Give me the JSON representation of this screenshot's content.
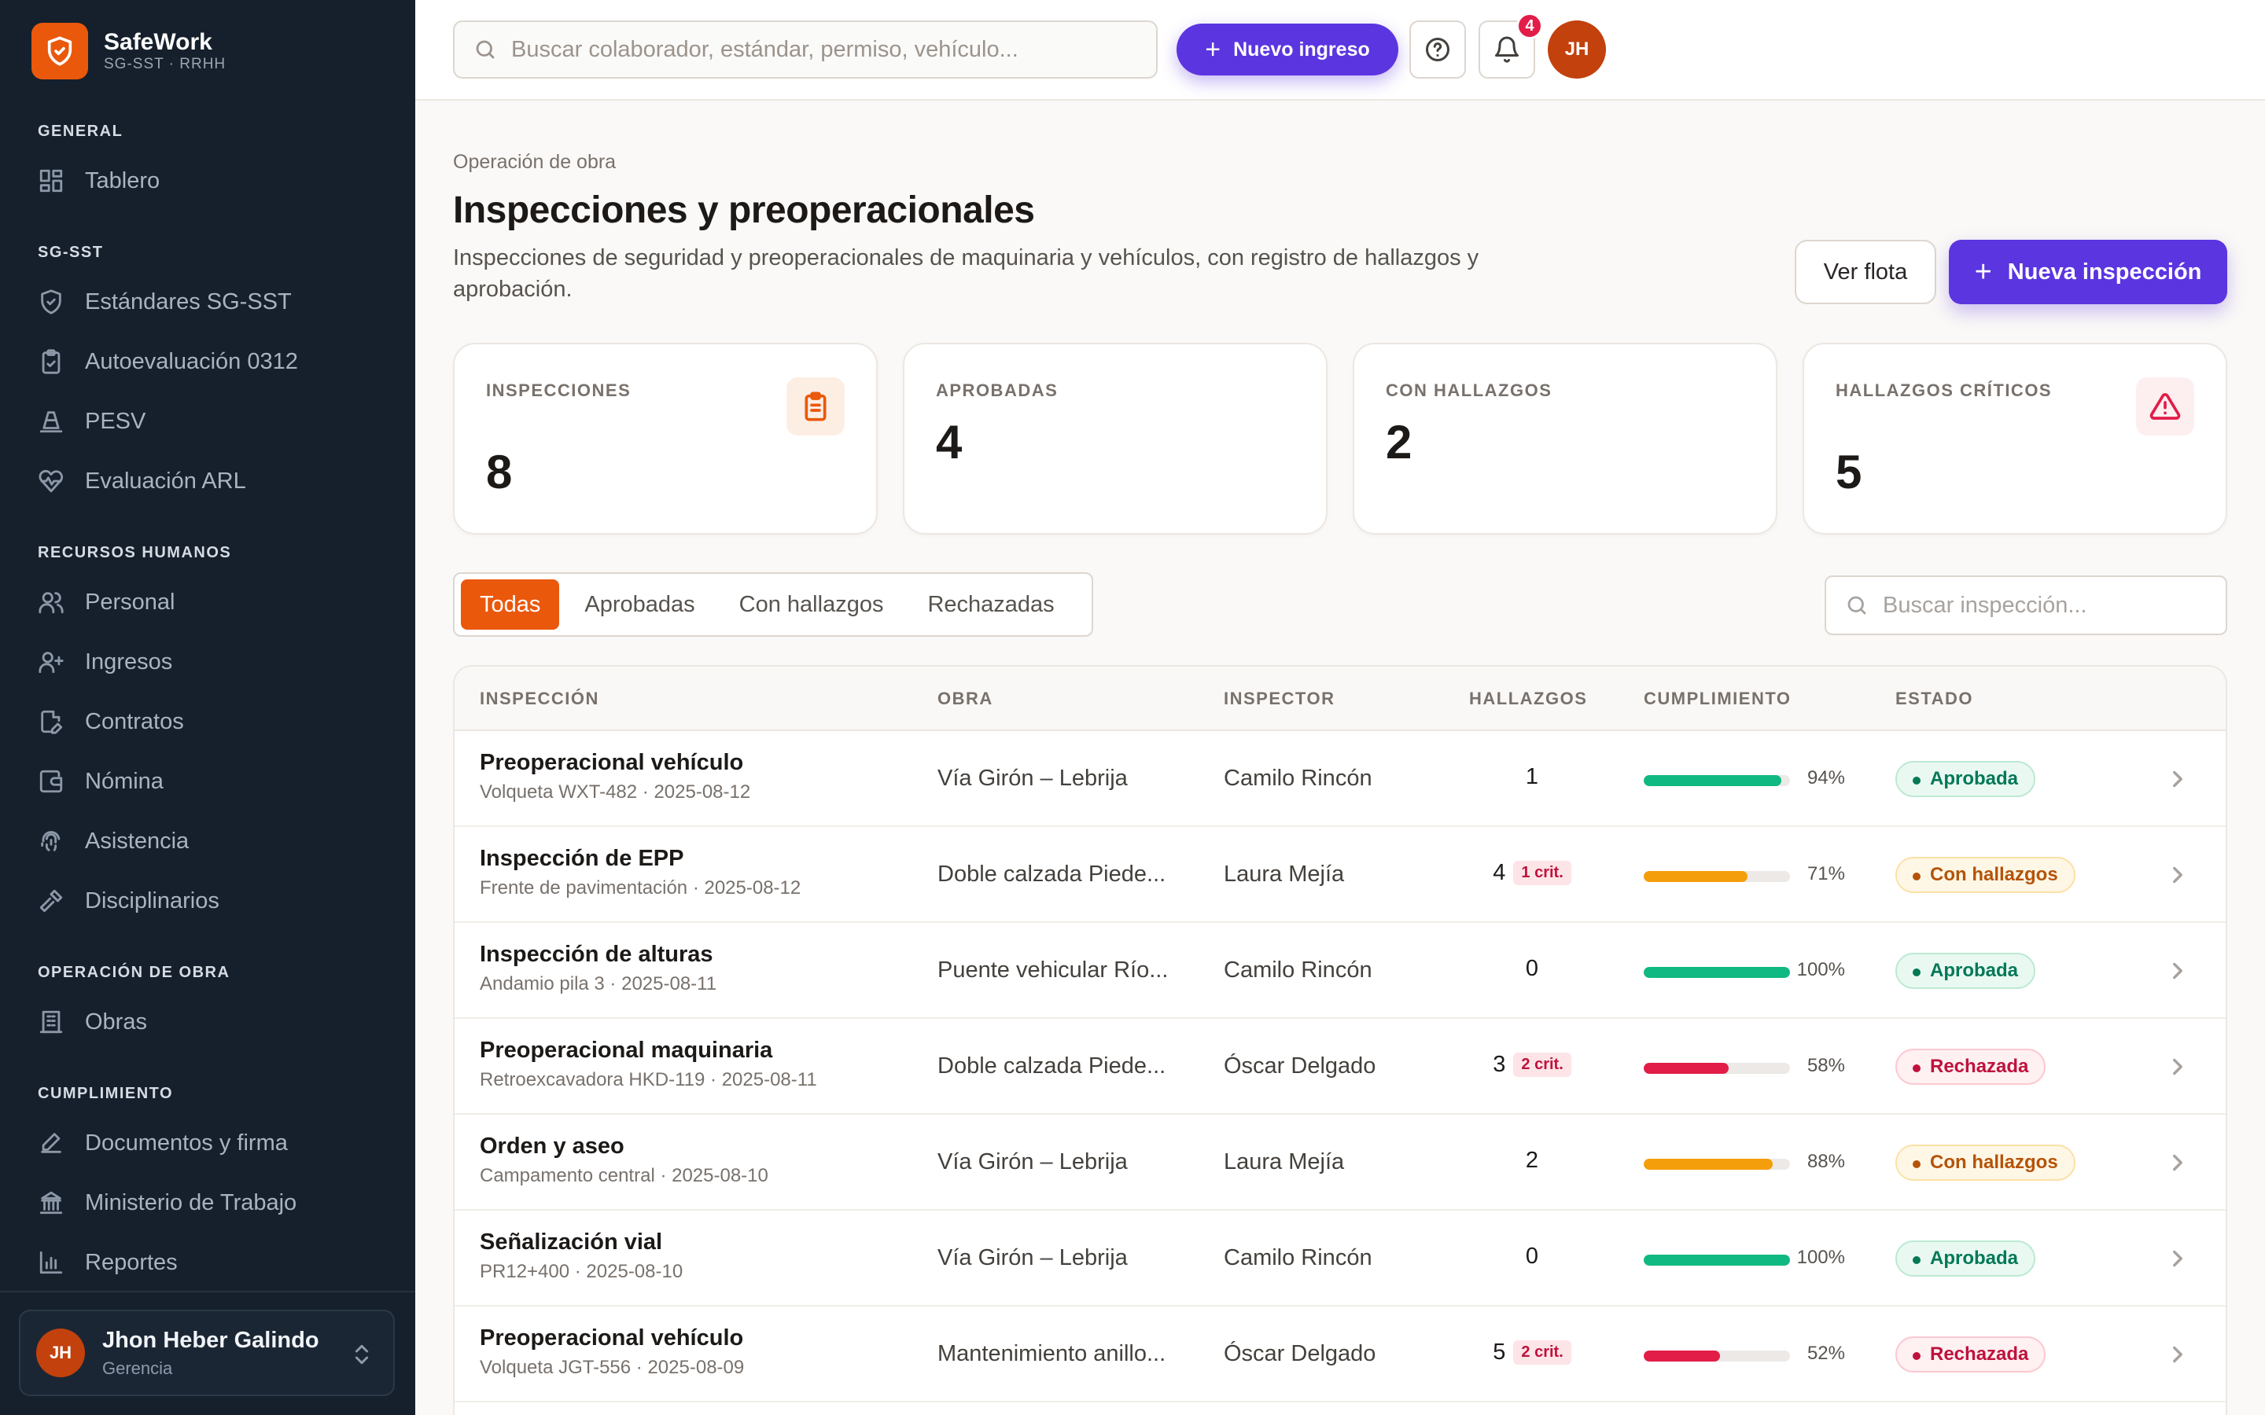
{
  "brand": {
    "name": "SafeWork",
    "sub": "SG-SST · RRHH"
  },
  "sidebar": {
    "sections": {
      "general": "GENERAL",
      "sgsst": "SG-SST",
      "rrhh": "RECURSOS HUMANOS",
      "obra": "OPERACIÓN DE OBRA",
      "cumplimiento": "CUMPLIMIENTO"
    },
    "items": {
      "tablero": "Tablero",
      "estandares": "Estándares SG-SST",
      "autoevaluacion": "Autoevaluación 0312",
      "pesv": "PESV",
      "arl": "Evaluación ARL",
      "personal": "Personal",
      "ingresos": "Ingresos",
      "contratos": "Contratos",
      "nomina": "Nómina",
      "asistencia": "Asistencia",
      "disciplinarios": "Disciplinarios",
      "obras": "Obras",
      "documentos": "Documentos y firma",
      "ministerio": "Ministerio de Trabajo",
      "reportes": "Reportes"
    },
    "user": {
      "initials": "JH",
      "name": "Jhon Heber Galindo",
      "role": "Gerencia"
    }
  },
  "topbar": {
    "search_placeholder": "Buscar colaborador, estándar, permiso, vehículo...",
    "new_button": "Nuevo ingreso",
    "notification_count": "4",
    "avatar_initials": "JH"
  },
  "page": {
    "breadcrumb": "Operación de obra",
    "title": "Inspecciones y preoperacionales",
    "subtitle": "Inspecciones de seguridad y preoperacionales de maquinaria y vehículos, con registro de hallazgos y aprobación.",
    "btn_fleet": "Ver flota",
    "btn_new": "Nueva inspección"
  },
  "kpis": [
    {
      "label": "INSPECCIONES",
      "value": "8"
    },
    {
      "label": "APROBADAS",
      "value": "4"
    },
    {
      "label": "CON HALLAZGOS",
      "value": "2"
    },
    {
      "label": "HALLAZGOS CRÍTICOS",
      "value": "5"
    }
  ],
  "tabs": [
    "Todas",
    "Aprobadas",
    "Con hallazgos",
    "Rechazadas"
  ],
  "table_search_placeholder": "Buscar inspección...",
  "table": {
    "headers": [
      "INSPECCIÓN",
      "OBRA",
      "INSPECTOR",
      "HALLAZGOS",
      "CUMPLIMIENTO",
      "ESTADO"
    ],
    "rows": [
      {
        "title": "Preoperacional vehículo",
        "sub": "Volqueta WXT-482 · 2025-08-12",
        "obra": "Vía Girón – Lebrija",
        "inspector": "Camilo Rincón",
        "hallazgos": "1",
        "critical": "",
        "compliance": 94,
        "compliance_label": "94%",
        "status": "Aprobada",
        "status_kind": "ok"
      },
      {
        "title": "Inspección de EPP",
        "sub": "Frente de pavimentación · 2025-08-12",
        "obra": "Doble calzada Piede...",
        "inspector": "Laura Mejía",
        "hallazgos": "4",
        "critical": "1 crit.",
        "compliance": 71,
        "compliance_label": "71%",
        "status": "Con hallazgos",
        "status_kind": "warn"
      },
      {
        "title": "Inspección de alturas",
        "sub": "Andamio pila 3 · 2025-08-11",
        "obra": "Puente vehicular Río...",
        "inspector": "Camilo Rincón",
        "hallazgos": "0",
        "critical": "",
        "compliance": 100,
        "compliance_label": "100%",
        "status": "Aprobada",
        "status_kind": "ok"
      },
      {
        "title": "Preoperacional maquinaria",
        "sub": "Retroexcavadora HKD-119 · 2025-08-11",
        "obra": "Doble calzada Piede...",
        "inspector": "Óscar Delgado",
        "hallazgos": "3",
        "critical": "2 crit.",
        "compliance": 58,
        "compliance_label": "58%",
        "status": "Rechazada",
        "status_kind": "bad"
      },
      {
        "title": "Orden y aseo",
        "sub": "Campamento central · 2025-08-10",
        "obra": "Vía Girón – Lebrija",
        "inspector": "Laura Mejía",
        "hallazgos": "2",
        "critical": "",
        "compliance": 88,
        "compliance_label": "88%",
        "status": "Con hallazgos",
        "status_kind": "warn"
      },
      {
        "title": "Señalización vial",
        "sub": "PR12+400 · 2025-08-10",
        "obra": "Vía Girón – Lebrija",
        "inspector": "Camilo Rincón",
        "hallazgos": "0",
        "critical": "",
        "compliance": 100,
        "compliance_label": "100%",
        "status": "Aprobada",
        "status_kind": "ok"
      },
      {
        "title": "Preoperacional vehículo",
        "sub": "Volqueta JGT-556 · 2025-08-09",
        "obra": "Mantenimiento anillo...",
        "inspector": "Óscar Delgado",
        "hallazgos": "5",
        "critical": "2 crit.",
        "compliance": 52,
        "compliance_label": "52%",
        "status": "Rechazada",
        "status_kind": "bad"
      }
    ]
  },
  "colors": {
    "accent": "#5b35e0",
    "brand": "#ea580c",
    "ok": "#10b981",
    "warn": "#f59e0b",
    "bad": "#e11d48"
  }
}
